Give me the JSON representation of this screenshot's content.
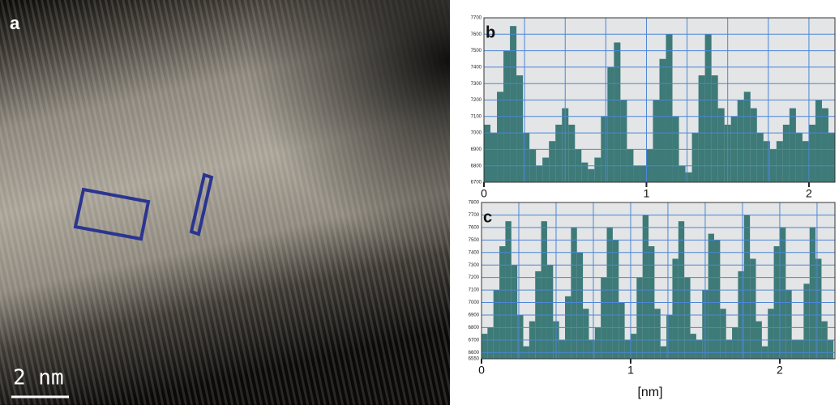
{
  "panel_a": {
    "label": "a",
    "scale_bar": "2 nm"
  },
  "chart_data": [
    {
      "type": "bar",
      "label": "b",
      "color": "#3d7a78",
      "grid": true,
      "xlim": [
        0,
        2.16
      ],
      "xticks": [
        0,
        1,
        2
      ],
      "ylim": [
        6700,
        7700
      ],
      "yticks": [
        6700,
        6800,
        6900,
        7000,
        7100,
        7200,
        7300,
        7400,
        7500,
        7600,
        7700
      ],
      "x": [
        0.02,
        0.06,
        0.1,
        0.14,
        0.18,
        0.22,
        0.26,
        0.3,
        0.34,
        0.38,
        0.42,
        0.46,
        0.5,
        0.54,
        0.58,
        0.62,
        0.66,
        0.7,
        0.74,
        0.78,
        0.82,
        0.86,
        0.9,
        0.94,
        0.98,
        1.02,
        1.06,
        1.1,
        1.14,
        1.18,
        1.22,
        1.26,
        1.3,
        1.34,
        1.38,
        1.42,
        1.46,
        1.5,
        1.54,
        1.58,
        1.62,
        1.66,
        1.7,
        1.74,
        1.78,
        1.82,
        1.86,
        1.9,
        1.94,
        1.98,
        2.02,
        2.06,
        2.1,
        2.14
      ],
      "values": [
        7050,
        7000,
        7250,
        7500,
        7650,
        7350,
        7000,
        6900,
        6800,
        6850,
        6950,
        7050,
        7150,
        7050,
        6900,
        6820,
        6780,
        6850,
        7100,
        7400,
        7550,
        7200,
        6900,
        6800,
        6800,
        6900,
        7200,
        7450,
        7600,
        7100,
        6800,
        6760,
        7000,
        7350,
        7600,
        7350,
        7150,
        7050,
        7100,
        7200,
        7250,
        7150,
        7000,
        6950,
        6900,
        6950,
        7050,
        7150,
        7000,
        6950,
        7050,
        7200,
        7150,
        7000
      ]
    },
    {
      "type": "bar",
      "label": "c",
      "x_label": "[nm]",
      "color": "#3d7a78",
      "grid": true,
      "xlim": [
        0,
        2.37
      ],
      "xticks": [
        0,
        1,
        2
      ],
      "ylim": [
        6550,
        7800
      ],
      "yticks": [
        6550,
        6600,
        6700,
        6800,
        6900,
        7000,
        7100,
        7200,
        7300,
        7400,
        7500,
        7600,
        7700,
        7800
      ],
      "x": [
        0.02,
        0.06,
        0.1,
        0.14,
        0.18,
        0.22,
        0.26,
        0.3,
        0.34,
        0.38,
        0.42,
        0.46,
        0.5,
        0.54,
        0.58,
        0.62,
        0.66,
        0.7,
        0.74,
        0.78,
        0.82,
        0.86,
        0.9,
        0.94,
        0.98,
        1.02,
        1.06,
        1.1,
        1.14,
        1.18,
        1.22,
        1.26,
        1.3,
        1.34,
        1.38,
        1.42,
        1.46,
        1.5,
        1.54,
        1.58,
        1.62,
        1.66,
        1.7,
        1.74,
        1.78,
        1.82,
        1.86,
        1.9,
        1.94,
        1.98,
        2.02,
        2.06,
        2.1,
        2.14,
        2.18,
        2.22,
        2.26,
        2.3,
        2.34
      ],
      "values": [
        6750,
        6800,
        7100,
        7450,
        7650,
        7300,
        6900,
        6650,
        6850,
        7250,
        7650,
        7300,
        6850,
        6700,
        7050,
        7600,
        7400,
        6950,
        6700,
        6800,
        7200,
        7600,
        7500,
        7000,
        6700,
        6750,
        7200,
        7700,
        7450,
        6950,
        6650,
        6900,
        7350,
        7650,
        7200,
        6750,
        6700,
        7100,
        7550,
        7500,
        6950,
        6700,
        6800,
        7250,
        7700,
        7350,
        6850,
        6650,
        6950,
        7450,
        7600,
        7100,
        6700,
        6700,
        7150,
        7600,
        7350,
        6850,
        6700
      ]
    }
  ]
}
